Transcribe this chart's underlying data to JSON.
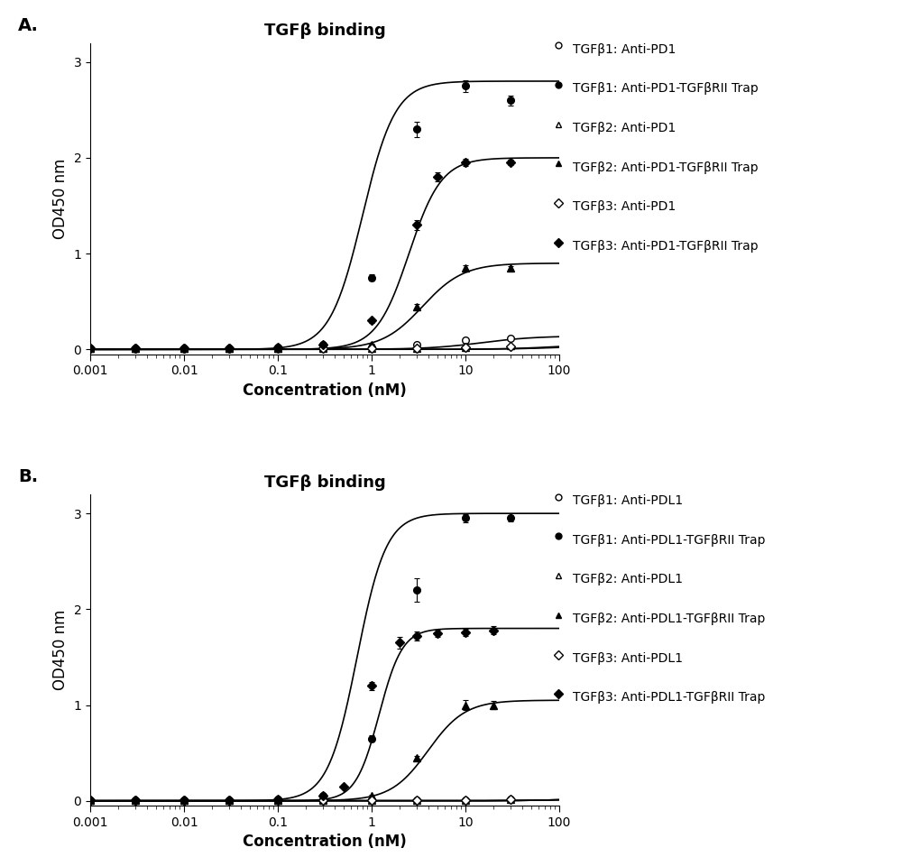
{
  "panel_A": {
    "title": "TGFβ binding",
    "xlabel": "Concentration (nM)",
    "ylabel": "OD450 nm",
    "ylim": [
      -0.05,
      3.2
    ],
    "xlim": [
      0.001,
      100
    ],
    "legend_labels": [
      "TGFβ1: Anti-PD1",
      "TGFβ1: Anti-PD1-TGFβRII Trap",
      "TGFβ2: Anti-PD1",
      "TGFβ2: Anti-PD1-TGFβRII Trap",
      "TGFβ3: Anti-PD1",
      "TGFβ3: Anti-PD1-TGFβRII Trap"
    ],
    "markers": [
      "o",
      "o",
      "^",
      "^",
      "D",
      "D"
    ],
    "fillstyles": [
      "none",
      "full",
      "none",
      "full",
      "none",
      "full"
    ],
    "series": [
      {
        "x": [
          0.001,
          0.003,
          0.01,
          0.03,
          0.1,
          0.3,
          1,
          3,
          10,
          30
        ],
        "y": [
          0.01,
          0.01,
          0.01,
          0.01,
          0.01,
          0.01,
          0.02,
          0.05,
          0.1,
          0.12
        ],
        "yerr": [
          0.005,
          0.005,
          0.005,
          0.005,
          0.005,
          0.005,
          0.005,
          0.01,
          0.01,
          0.01
        ],
        "ec50": 15.0,
        "top": 0.14,
        "hill": 1.5
      },
      {
        "x": [
          0.001,
          0.003,
          0.01,
          0.03,
          0.1,
          0.3,
          1,
          3,
          10,
          30
        ],
        "y": [
          0.01,
          0.01,
          0.01,
          0.01,
          0.02,
          0.05,
          0.75,
          2.3,
          2.75,
          2.6
        ],
        "yerr": [
          0.005,
          0.005,
          0.005,
          0.005,
          0.005,
          0.01,
          0.03,
          0.08,
          0.06,
          0.05
        ],
        "ec50": 0.8,
        "top": 2.8,
        "hill": 2.5
      },
      {
        "x": [
          0.001,
          0.003,
          0.01,
          0.03,
          0.1,
          0.3,
          1,
          3,
          10,
          30
        ],
        "y": [
          0.01,
          0.01,
          0.01,
          0.01,
          0.01,
          0.01,
          0.01,
          0.01,
          0.02,
          0.04
        ],
        "yerr": [
          0.005,
          0.005,
          0.005,
          0.005,
          0.005,
          0.005,
          0.005,
          0.005,
          0.005,
          0.01
        ],
        "ec50": 100.0,
        "top": 0.06,
        "hill": 1.5
      },
      {
        "x": [
          0.001,
          0.003,
          0.01,
          0.03,
          0.1,
          0.3,
          1,
          3,
          10,
          30
        ],
        "y": [
          0.01,
          0.01,
          0.01,
          0.01,
          0.01,
          0.02,
          0.05,
          0.45,
          0.85,
          0.85
        ],
        "yerr": [
          0.005,
          0.005,
          0.005,
          0.005,
          0.005,
          0.005,
          0.01,
          0.02,
          0.03,
          0.02
        ],
        "ec50": 3.5,
        "top": 0.9,
        "hill": 2.0
      },
      {
        "x": [
          0.001,
          0.003,
          0.01,
          0.03,
          0.1,
          0.3,
          1,
          3,
          10,
          30
        ],
        "y": [
          0.01,
          0.01,
          0.01,
          0.01,
          0.01,
          0.01,
          0.01,
          0.01,
          0.02,
          0.03
        ],
        "yerr": [
          0.005,
          0.005,
          0.005,
          0.005,
          0.005,
          0.005,
          0.005,
          0.005,
          0.005,
          0.005
        ],
        "ec50": 100.0,
        "top": 0.04,
        "hill": 1.5
      },
      {
        "x": [
          0.001,
          0.003,
          0.01,
          0.03,
          0.1,
          0.3,
          1,
          3,
          5,
          10,
          30
        ],
        "y": [
          0.01,
          0.01,
          0.01,
          0.01,
          0.02,
          0.05,
          0.3,
          1.3,
          1.8,
          1.95,
          1.95
        ],
        "yerr": [
          0.005,
          0.005,
          0.005,
          0.005,
          0.005,
          0.01,
          0.02,
          0.05,
          0.05,
          0.04,
          0.03
        ],
        "ec50": 2.5,
        "top": 2.0,
        "hill": 2.5
      }
    ]
  },
  "panel_B": {
    "title": "TGFβ binding",
    "xlabel": "Concentration (nM)",
    "ylabel": "OD450 nm",
    "ylim": [
      -0.05,
      3.2
    ],
    "xlim": [
      0.001,
      100
    ],
    "legend_labels": [
      "TGFβ1: Anti-PDL1",
      "TGFβ1: Anti-PDL1-TGFβRII Trap",
      "TGFβ2: Anti-PDL1",
      "TGFβ2: Anti-PDL1-TGFβRII Trap",
      "TGFβ3: Anti-PDL1",
      "TGFβ3: Anti-PDL1-TGFβRII Trap"
    ],
    "markers": [
      "o",
      "o",
      "^",
      "^",
      "D",
      "D"
    ],
    "fillstyles": [
      "none",
      "full",
      "none",
      "full",
      "none",
      "full"
    ],
    "series": [
      {
        "x": [
          0.001,
          0.003,
          0.01,
          0.03,
          0.1,
          0.3,
          1,
          3,
          10,
          30
        ],
        "y": [
          0.01,
          0.01,
          0.01,
          0.01,
          0.01,
          0.01,
          0.01,
          0.01,
          0.01,
          0.02
        ],
        "yerr": [
          0.005,
          0.005,
          0.005,
          0.005,
          0.005,
          0.005,
          0.005,
          0.005,
          0.005,
          0.005
        ],
        "ec50": 150.0,
        "top": 0.03,
        "hill": 1.5
      },
      {
        "x": [
          0.001,
          0.003,
          0.01,
          0.03,
          0.1,
          0.3,
          1,
          3,
          10,
          30
        ],
        "y": [
          0.01,
          0.01,
          0.01,
          0.01,
          0.02,
          0.05,
          0.65,
          2.2,
          2.95,
          2.95
        ],
        "yerr": [
          0.005,
          0.005,
          0.005,
          0.005,
          0.005,
          0.01,
          0.03,
          0.12,
          0.04,
          0.03
        ],
        "ec50": 0.7,
        "top": 3.0,
        "hill": 2.8
      },
      {
        "x": [
          0.001,
          0.003,
          0.01,
          0.03,
          0.1,
          0.3,
          1,
          3,
          10,
          30
        ],
        "y": [
          0.01,
          0.01,
          0.01,
          0.01,
          0.01,
          0.01,
          0.01,
          0.01,
          0.01,
          0.02
        ],
        "yerr": [
          0.005,
          0.005,
          0.005,
          0.005,
          0.005,
          0.005,
          0.005,
          0.005,
          0.005,
          0.005
        ],
        "ec50": 150.0,
        "top": 0.03,
        "hill": 1.5
      },
      {
        "x": [
          0.001,
          0.003,
          0.01,
          0.03,
          0.1,
          0.3,
          1,
          3,
          10,
          20
        ],
        "y": [
          0.01,
          0.01,
          0.01,
          0.01,
          0.01,
          0.02,
          0.05,
          0.45,
          1.0,
          1.0
        ],
        "yerr": [
          0.005,
          0.005,
          0.005,
          0.005,
          0.005,
          0.005,
          0.01,
          0.02,
          0.05,
          0.04
        ],
        "ec50": 4.0,
        "top": 1.05,
        "hill": 2.2
      },
      {
        "x": [
          0.001,
          0.003,
          0.01,
          0.03,
          0.1,
          0.3,
          1,
          3,
          10,
          30
        ],
        "y": [
          0.01,
          0.01,
          0.01,
          0.01,
          0.01,
          0.01,
          0.01,
          0.01,
          0.01,
          0.02
        ],
        "yerr": [
          0.005,
          0.005,
          0.005,
          0.005,
          0.005,
          0.005,
          0.005,
          0.005,
          0.005,
          0.005
        ],
        "ec50": 150.0,
        "top": 0.03,
        "hill": 1.5
      },
      {
        "x": [
          0.001,
          0.003,
          0.01,
          0.03,
          0.1,
          0.3,
          0.5,
          1,
          2,
          3,
          5,
          10,
          20
        ],
        "y": [
          0.01,
          0.01,
          0.01,
          0.01,
          0.02,
          0.05,
          0.15,
          1.2,
          1.65,
          1.72,
          1.75,
          1.76,
          1.78
        ],
        "yerr": [
          0.005,
          0.005,
          0.005,
          0.005,
          0.005,
          0.01,
          0.02,
          0.04,
          0.06,
          0.05,
          0.04,
          0.04,
          0.04
        ],
        "ec50": 1.2,
        "top": 1.8,
        "hill": 3.5
      }
    ]
  },
  "color": "#000000",
  "background": "#ffffff",
  "label_A": "A.",
  "label_B": "B.",
  "title_fontsize": 13,
  "label_fontsize": 12,
  "legend_fontsize": 10,
  "tick_fontsize": 10,
  "xtick_labels": [
    "0.001",
    "0.01",
    "0.1",
    "1",
    "10",
    "100"
  ],
  "xtick_values": [
    0.001,
    0.01,
    0.1,
    1,
    10,
    100
  ],
  "ytick_values": [
    0,
    1,
    2,
    3
  ]
}
